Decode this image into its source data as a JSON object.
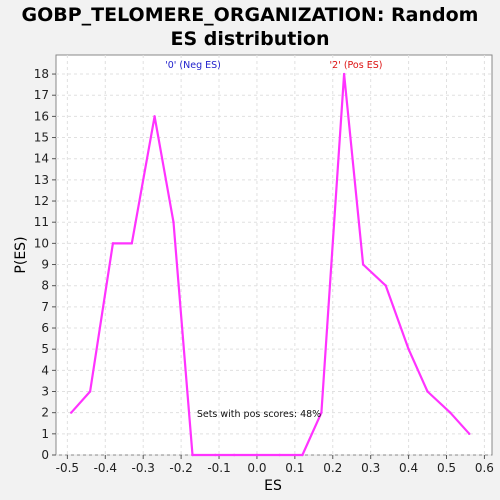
{
  "chart_data": {
    "type": "line",
    "title_line1": "GOBP_TELOMERE_ORGANIZATION: Random",
    "title_line2": "ES distribution",
    "xlabel": "ES",
    "ylabel": "P(ES)",
    "xlim": [
      -0.53,
      0.62
    ],
    "ylim": [
      0,
      18.9
    ],
    "xticks": [
      "-0.5",
      "-0.4",
      "-0.3",
      "-0.2",
      "-0.1",
      "0.0",
      "0.1",
      "0.2",
      "0.3",
      "0.4",
      "0.5",
      "0.6"
    ],
    "yticks": [
      "0",
      "1",
      "2",
      "3",
      "4",
      "5",
      "6",
      "7",
      "8",
      "9",
      "10",
      "11",
      "12",
      "13",
      "14",
      "15",
      "16",
      "17",
      "18"
    ],
    "grid": true,
    "series": [
      {
        "color": "#ff33ff",
        "x": [
          -0.49,
          -0.44,
          -0.38,
          -0.33,
          -0.27,
          -0.22,
          -0.17,
          -0.11,
          -0.06,
          0.0,
          0.06,
          0.12,
          0.17,
          0.23,
          0.28,
          0.34,
          0.4,
          0.45,
          0.51,
          0.56
        ],
        "y": [
          2,
          3,
          10,
          10,
          16,
          11,
          0,
          0,
          0,
          0,
          0,
          0,
          2,
          18,
          9,
          8,
          5,
          3,
          2,
          1
        ]
      }
    ],
    "annotations": {
      "neg_label": "'0' (Neg ES)",
      "neg_color": "#2222cc",
      "pos_label": "'2' (Pos ES)",
      "pos_color": "#dd1111",
      "pos_scores_text": "Sets with pos scores: 48%"
    }
  }
}
